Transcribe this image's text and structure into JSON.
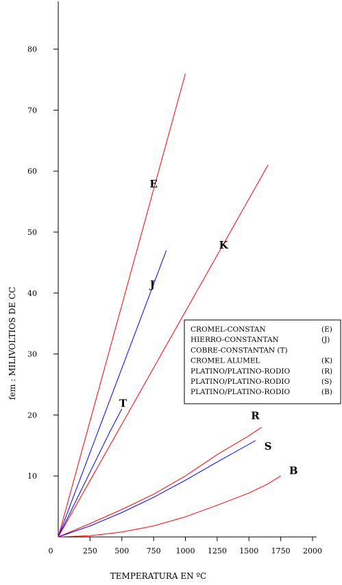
{
  "chart_data": {
    "type": "line",
    "xlabel": "TEMPERATURA EN ºC",
    "ylabel": "fem :  MILIVOLTIOS DE  CC",
    "xlim": [
      0,
      2000
    ],
    "ylim": [
      0,
      85
    ],
    "x_ticks": [
      "250",
      "500",
      "750",
      "1000",
      "1250",
      "1500",
      "1750",
      "2000"
    ],
    "x_origin_label": "0",
    "y_ticks": [
      "10",
      "20",
      "30",
      "40",
      "50",
      "60",
      "70",
      "80"
    ],
    "grid": false,
    "legend_position": "right",
    "legend": [
      {
        "name": "CROMEL-CONSTAN",
        "code": "(E)"
      },
      {
        "name": "HIERRO-CONSTANTAN",
        "code": "(J)"
      },
      {
        "name": "COBRE-CONSTANTAN (T)",
        "code": ""
      },
      {
        "name": "CROMEL ALUMEL",
        "code": "(K)"
      },
      {
        "name": "PLATINO/PLATINO-RODIO",
        "code": "(R)"
      },
      {
        "name": "PLATINO/PLATINO-RODIO",
        "code": "(S)"
      },
      {
        "name": "PLATINO/PLATINO-RODIO",
        "code": "(B)"
      }
    ],
    "series": [
      {
        "name": "E",
        "color": "#ff0000",
        "x": [
          0,
          1000
        ],
        "y": [
          0,
          76
        ]
      },
      {
        "name": "J",
        "color": "#0000ff",
        "x": [
          0,
          850
        ],
        "y": [
          0,
          47
        ]
      },
      {
        "name": "T",
        "color": "#0000ff",
        "x": [
          0,
          200,
          400,
          500
        ],
        "y": [
          0,
          8.5,
          17,
          21
        ]
      },
      {
        "name": "K",
        "color": "#ff0000",
        "x": [
          0,
          1650
        ],
        "y": [
          0,
          61
        ]
      },
      {
        "name": "R",
        "color": "#ff0000",
        "x": [
          0,
          250,
          500,
          750,
          1000,
          1250,
          1500,
          1600
        ],
        "y": [
          0,
          2.2,
          4.5,
          7,
          10,
          13.5,
          16.6,
          18
        ]
      },
      {
        "name": "S",
        "color": "#0000ff",
        "x": [
          0,
          250,
          500,
          750,
          1000,
          1250,
          1500,
          1550
        ],
        "y": [
          0,
          1.8,
          4,
          6.5,
          9.3,
          12.3,
          15.2,
          15.8
        ]
      },
      {
        "name": "B",
        "color": "#ff0000",
        "x": [
          0,
          250,
          500,
          750,
          1000,
          1250,
          1500,
          1650,
          1750
        ],
        "y": [
          0,
          0.2,
          0.8,
          1.8,
          3.3,
          5.2,
          7.2,
          8.7,
          10
        ]
      }
    ],
    "labels": [
      {
        "text": "E",
        "x": 750,
        "y": 58
      },
      {
        "text": "J",
        "x": 740,
        "y": 41.5
      },
      {
        "text": "T",
        "x": 510,
        "y": 22
      },
      {
        "text": "K",
        "x": 1300,
        "y": 48
      },
      {
        "text": "R",
        "x": 1550,
        "y": 20
      },
      {
        "text": "S",
        "x": 1650,
        "y": 15
      },
      {
        "text": "B",
        "x": 1850,
        "y": 11
      }
    ]
  }
}
